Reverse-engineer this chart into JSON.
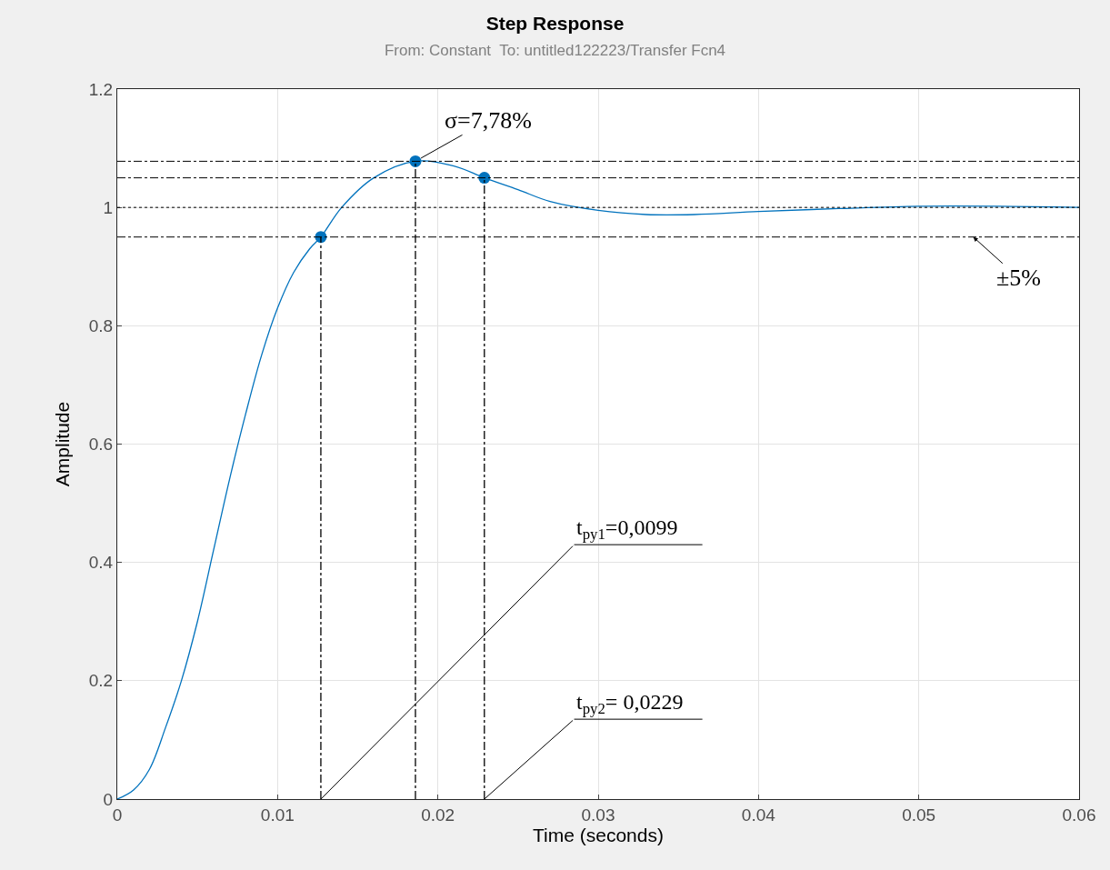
{
  "chart_data": {
    "type": "line",
    "title": "Step Response",
    "subtitle": "From: Constant  To: untitled122223/Transfer Fcn4",
    "xlabel": "Time (seconds)",
    "ylabel": "Amplitude",
    "x": [
      0,
      0.001,
      0.002,
      0.003,
      0.004,
      0.005,
      0.006,
      0.007,
      0.008,
      0.009,
      0.01,
      0.011,
      0.012,
      0.0127,
      0.014,
      0.016,
      0.0186,
      0.021,
      0.0229,
      0.025,
      0.027,
      0.03,
      0.033,
      0.036,
      0.04,
      0.045,
      0.05,
      0.055,
      0.06
    ],
    "series": [
      {
        "color": "#0072bd",
        "values": [
          0,
          0.015,
          0.05,
          0.12,
          0.2,
          0.3,
          0.42,
          0.54,
          0.65,
          0.75,
          0.83,
          0.89,
          0.93,
          0.95,
          1.0,
          1.05,
          1.078,
          1.07,
          1.05,
          1.03,
          1.01,
          0.995,
          0.988,
          0.988,
          0.993,
          0.998,
          1.002,
          1.002,
          1.0
        ]
      },
      {
        "type": "scatter",
        "marker": "circle",
        "color": "#0072bd",
        "x": [
          0.0127,
          0.0186,
          0.0229
        ],
        "values": [
          0.95,
          1.078,
          1.05
        ]
      },
      {
        "color": "#000000",
        "line_style": "dashed",
        "x": [
          0.0127,
          0.0127
        ],
        "values": [
          0,
          0.95
        ]
      },
      {
        "color": "#000000",
        "line_style": "dashed",
        "x": [
          0.0186,
          0.0186
        ],
        "values": [
          0,
          1.078
        ]
      },
      {
        "color": "#000000",
        "line_style": "dashed",
        "x": [
          0.0229,
          0.0229
        ],
        "values": [
          0,
          1.05
        ]
      }
    ],
    "ref_lines": [
      {
        "axis": "y",
        "value": 1.078,
        "color": "#000000",
        "line_style": "dashed"
      },
      {
        "axis": "y",
        "value": 1.05,
        "color": "#000000",
        "line_style": "dashed"
      },
      {
        "axis": "y",
        "value": 1,
        "color": "#000000",
        "line_style": "dotted"
      },
      {
        "axis": "y",
        "value": 0.95,
        "color": "#000000",
        "line_style": "dashed"
      }
    ],
    "annotations": [
      {
        "text": "σ=7,78%",
        "x": 0.0186,
        "y": 1.078
      },
      {
        "text": "±5%",
        "x": 0.0534,
        "y": 0.95
      },
      {
        "text": "t$_{py1}$=0,0099",
        "x": 0.0127,
        "y": 0
      },
      {
        "text": "t$_{py2}$= 0,0229",
        "x": 0.0229,
        "y": 0
      }
    ],
    "xlim": [
      0,
      0.06
    ],
    "xticks": [
      0,
      0.01,
      0.02,
      0.03,
      0.04,
      0.05,
      0.06
    ],
    "ylim": [
      0,
      1.2
    ],
    "yticks": [
      0,
      0.2,
      0.4,
      0.6,
      0.8,
      1,
      1.2
    ],
    "grid": true,
    "marker": "none",
    "line_style": "solid"
  }
}
